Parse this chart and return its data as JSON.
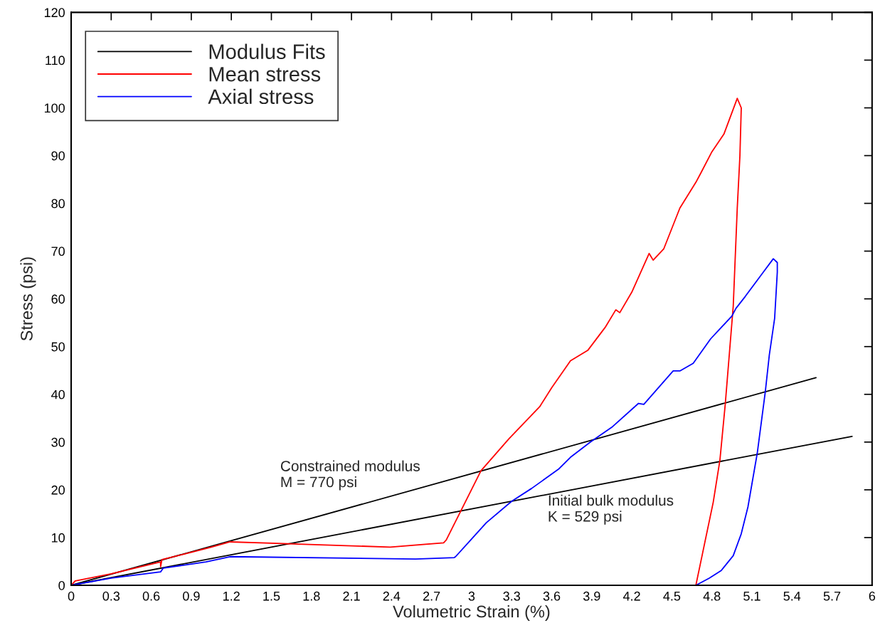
{
  "chart_data": {
    "type": "line",
    "xlabel": "Volumetric Strain (%)",
    "ylabel": "Stress (psi)",
    "xlim": [
      0,
      6
    ],
    "xticks": [
      0,
      0.3,
      0.6,
      0.9,
      1.2,
      1.5,
      1.8,
      2.1,
      2.4,
      2.7,
      3,
      3.3,
      3.6,
      3.9,
      4.2,
      4.5,
      4.8,
      5.1,
      5.4,
      5.7,
      6
    ],
    "ylim": [
      0,
      120
    ],
    "yticks": [
      0,
      10,
      20,
      30,
      40,
      50,
      60,
      70,
      80,
      90,
      100,
      110,
      120
    ],
    "grid": false,
    "legend": "top left",
    "marker": "none",
    "line_style": "solid",
    "series": [
      {
        "name": "Modulus Fits",
        "color": "#000000",
        "x": [
          0,
          5.58
        ],
        "values": [
          0,
          43.5
        ]
      },
      {
        "color": "#000000",
        "x": [
          0,
          5.85
        ],
        "values": [
          0,
          31.2
        ]
      },
      {
        "name": "Mean stress",
        "color": "#ff0000",
        "x": [
          0,
          0.03,
          0.3,
          0.67,
          0.67,
          0.68,
          0.9,
          1.05,
          1.19,
          2.39,
          2.79,
          2.81,
          3.07,
          3.28,
          3.51,
          3.6,
          3.74,
          3.87,
          4.0,
          4.08,
          4.11,
          4.2,
          4.33,
          4.36,
          4.44,
          4.56,
          4.68,
          4.72,
          4.8,
          4.89,
          4.99,
          5.02,
          5.01,
          4.99,
          4.96,
          4.9,
          4.86,
          4.81,
          4.73,
          4.68
        ],
        "values": [
          0,
          0.9,
          2.4,
          4.9,
          3.9,
          5.4,
          6.9,
          8.0,
          9.1,
          8.0,
          8.9,
          9.5,
          24,
          30.7,
          37.4,
          41.4,
          47,
          49.2,
          54,
          57.7,
          57.1,
          61.4,
          69.5,
          68.1,
          70.5,
          79,
          84.4,
          86.5,
          90.8,
          94.5,
          102,
          100,
          90,
          79,
          58.5,
          37.9,
          26.2,
          17.4,
          6.7,
          0
        ]
      },
      {
        "name": "Axial stress",
        "color": "#0000ff",
        "x": [
          0,
          0.3,
          0.67,
          0.69,
          1.01,
          1.19,
          2.58,
          2.87,
          2.88,
          3.11,
          3.3,
          3.45,
          3.65,
          3.74,
          3.89,
          4.05,
          4.25,
          4.29,
          4.51,
          4.56,
          4.66,
          4.79,
          4.95,
          4.98,
          5.05,
          5.18,
          5.26,
          5.29,
          5.29,
          5.27,
          5.23,
          5.2,
          5.14,
          5.07,
          5.02,
          4.96,
          4.87,
          4.78,
          4.68,
          4.53
        ],
        "values": [
          0,
          1.5,
          2.8,
          3.6,
          4.9,
          6.0,
          5.5,
          5.8,
          6.0,
          13.1,
          17.6,
          20.3,
          24.3,
          26.8,
          30,
          33.1,
          38.1,
          37.9,
          44.9,
          44.9,
          46.5,
          51.6,
          56.4,
          58,
          60.5,
          65.4,
          68.4,
          67.6,
          65.6,
          55.9,
          48.2,
          40.5,
          27.7,
          16.4,
          10.8,
          6.2,
          3.1,
          1.5,
          0,
          0
        ]
      }
    ],
    "annotations": [
      "Constrained modulus\nM = 770 psi",
      "Initial bulk modulus\nK = 529 psi"
    ]
  }
}
